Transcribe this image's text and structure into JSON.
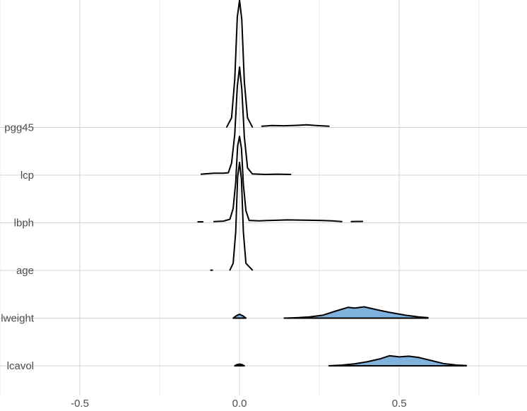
{
  "chart_data": {
    "type": "ridgeline",
    "title": "",
    "xlabel": "",
    "ylabel": "",
    "xlim": [
      -0.75,
      0.9
    ],
    "x_ticks": [
      {
        "value": -0.5,
        "label": "-0.5"
      },
      {
        "value": 0.0,
        "label": "0.0"
      },
      {
        "value": 0.5,
        "label": "0.5"
      }
    ],
    "grid": true,
    "legend": "none",
    "colors": {
      "background": "#ffffff",
      "grid_major": "#d4d4d4",
      "grid_minor": "#ececec",
      "tick_text": "#4d4d4d",
      "outline": "#000000",
      "highlight_fill": "#7fb3de"
    },
    "series": [
      {
        "name": "lcavol",
        "highlighted": true,
        "segments": [
          [
            [
              -0.015,
              0
            ],
            [
              -0.008,
              0.05
            ],
            [
              0,
              0.07
            ],
            [
              0.008,
              0.05
            ],
            [
              0.015,
              0
            ]
          ],
          [
            [
              0.28,
              0
            ],
            [
              0.32,
              0.03
            ],
            [
              0.36,
              0.08
            ],
            [
              0.4,
              0.17
            ],
            [
              0.44,
              0.29
            ],
            [
              0.47,
              0.42
            ],
            [
              0.5,
              0.37
            ],
            [
              0.53,
              0.4
            ],
            [
              0.56,
              0.35
            ],
            [
              0.6,
              0.22
            ],
            [
              0.64,
              0.09
            ],
            [
              0.68,
              0.03
            ],
            [
              0.71,
              0.01
            ]
          ]
        ]
      },
      {
        "name": "lweight",
        "highlighted": true,
        "segments": [
          [
            [
              -0.02,
              0
            ],
            [
              -0.01,
              0.1
            ],
            [
              0,
              0.16
            ],
            [
              0.01,
              0.1
            ],
            [
              0.02,
              0
            ]
          ],
          [
            [
              0.14,
              0
            ],
            [
              0.18,
              0.02
            ],
            [
              0.22,
              0.05
            ],
            [
              0.26,
              0.12
            ],
            [
              0.3,
              0.29
            ],
            [
              0.34,
              0.45
            ],
            [
              0.36,
              0.42
            ],
            [
              0.39,
              0.47
            ],
            [
              0.43,
              0.35
            ],
            [
              0.47,
              0.24
            ],
            [
              0.52,
              0.12
            ],
            [
              0.56,
              0.05
            ],
            [
              0.59,
              0.02
            ]
          ]
        ]
      },
      {
        "name": "age",
        "highlighted": false,
        "segments": [
          [
            [
              -0.09,
              0.01
            ],
            [
              -0.085,
              0.01
            ]
          ],
          [
            [
              -0.03,
              0.02
            ],
            [
              -0.02,
              0.3
            ],
            [
              -0.012,
              1.6
            ],
            [
              -0.006,
              3.9
            ],
            [
              0,
              4.5
            ],
            [
              0.006,
              3.8
            ],
            [
              0.012,
              1.6
            ],
            [
              0.02,
              0.3
            ],
            [
              0.04,
              0.02
            ]
          ]
        ]
      },
      {
        "name": "lbph",
        "highlighted": false,
        "segments": [
          [
            [
              -0.13,
              0.04
            ],
            [
              -0.115,
              0.04
            ]
          ],
          [
            [
              -0.08,
              0.05
            ],
            [
              -0.05,
              0.07
            ],
            [
              -0.03,
              0.15
            ],
            [
              -0.02,
              0.6
            ],
            [
              -0.012,
              1.7
            ],
            [
              -0.006,
              3.2
            ],
            [
              0,
              3.6
            ],
            [
              0.006,
              3.1
            ],
            [
              0.012,
              1.6
            ],
            [
              0.02,
              0.5
            ],
            [
              0.03,
              0.1
            ],
            [
              0.06,
              0.08
            ],
            [
              0.1,
              0.1
            ],
            [
              0.15,
              0.12
            ],
            [
              0.2,
              0.11
            ],
            [
              0.25,
              0.1
            ],
            [
              0.29,
              0.08
            ],
            [
              0.32,
              0.05
            ]
          ],
          [
            [
              0.35,
              0.05
            ],
            [
              0.385,
              0.06
            ]
          ]
        ]
      },
      {
        "name": "lcp",
        "highlighted": false,
        "segments": [
          [
            [
              -0.12,
              0.04
            ],
            [
              -0.08,
              0.08
            ],
            [
              -0.05,
              0.08
            ],
            [
              -0.035,
              0.1
            ],
            [
              -0.025,
              0.5
            ],
            [
              -0.015,
              1.7
            ],
            [
              -0.007,
              3.7
            ],
            [
              0,
              4.5
            ],
            [
              0.007,
              3.6
            ],
            [
              0.015,
              1.6
            ],
            [
              0.025,
              0.3
            ],
            [
              0.04,
              0.05
            ],
            [
              0.08,
              0.03
            ],
            [
              0.12,
              0.04
            ],
            [
              0.16,
              0.03
            ]
          ]
        ]
      },
      {
        "name": "pgg45",
        "highlighted": false,
        "segments": [
          [
            [
              -0.04,
              0.02
            ],
            [
              -0.025,
              0.4
            ],
            [
              -0.015,
              2.0
            ],
            [
              -0.007,
              4.6
            ],
            [
              0,
              5.3
            ],
            [
              0.007,
              4.5
            ],
            [
              0.015,
              1.9
            ],
            [
              0.025,
              0.4
            ],
            [
              0.04,
              0.02
            ]
          ],
          [
            [
              0.07,
              0.05
            ],
            [
              0.1,
              0.08
            ],
            [
              0.14,
              0.07
            ],
            [
              0.18,
              0.09
            ],
            [
              0.21,
              0.11
            ],
            [
              0.24,
              0.08
            ],
            [
              0.28,
              0.05
            ]
          ]
        ]
      }
    ]
  }
}
